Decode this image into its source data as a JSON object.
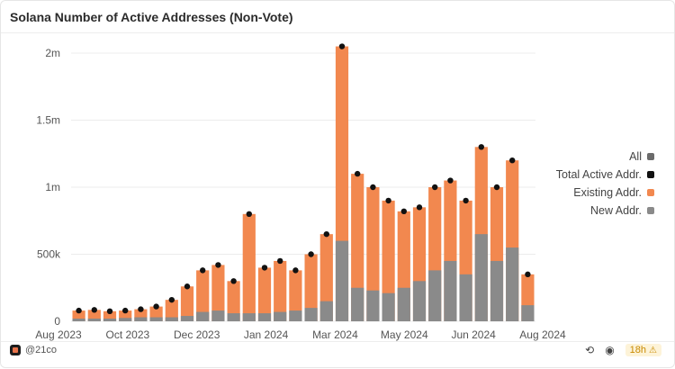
{
  "header": {
    "title": "Solana Number of Active Addresses (Non-Vote)"
  },
  "footer": {
    "author": "@21co",
    "refresh": "18h"
  },
  "chart_data": {
    "type": "bar",
    "title": "Solana Number of Active Addresses (Non-Vote)",
    "xlabel": "",
    "ylabel": "",
    "ylim": [
      0,
      2000000
    ],
    "yticks": [
      {
        "value": 0,
        "label": "0"
      },
      {
        "value": 500000,
        "label": "500k"
      },
      {
        "value": 1000000,
        "label": "1m"
      },
      {
        "value": 1500000,
        "label": "1.5m"
      },
      {
        "value": 2000000,
        "label": "2m"
      }
    ],
    "xticks": [
      "Aug 2023",
      "Oct 2023",
      "Dec 2023",
      "Jan 2024",
      "Mar 2024",
      "May 2024",
      "Jun 2024",
      "Aug 2024"
    ],
    "legend": [
      {
        "label": "All",
        "color": "#6b6b6b"
      },
      {
        "label": "Total Active Addr.",
        "color": "#111111"
      },
      {
        "label": "Existing Addr.",
        "color": "#f2884f"
      },
      {
        "label": "New Addr.",
        "color": "#8a8a8a"
      }
    ],
    "categories": [
      "2023-08-01",
      "2023-08-15",
      "2023-09-01",
      "2023-09-15",
      "2023-10-01",
      "2023-10-15",
      "2023-11-01",
      "2023-11-15",
      "2023-12-01",
      "2023-12-15",
      "2024-01-01",
      "2024-01-07",
      "2024-01-15",
      "2024-02-01",
      "2024-02-15",
      "2024-02-25",
      "2024-03-01",
      "2024-03-08",
      "2024-03-15",
      "2024-04-01",
      "2024-04-15",
      "2024-05-01",
      "2024-05-15",
      "2024-06-01",
      "2024-06-15",
      "2024-07-01",
      "2024-07-10",
      "2024-07-20",
      "2024-08-01",
      "2024-08-05"
    ],
    "series": [
      {
        "name": "Total Active Addr.",
        "values": [
          80000,
          85000,
          75000,
          80000,
          90000,
          110000,
          160000,
          260000,
          380000,
          420000,
          300000,
          800000,
          400000,
          450000,
          380000,
          500000,
          650000,
          2050000,
          1100000,
          1000000,
          900000,
          820000,
          850000,
          1000000,
          1050000,
          900000,
          1300000,
          1000000,
          1200000,
          350000
        ]
      },
      {
        "name": "New Addr.",
        "values": [
          20000,
          20000,
          20000,
          25000,
          30000,
          30000,
          30000,
          40000,
          70000,
          80000,
          60000,
          60000,
          60000,
          70000,
          80000,
          100000,
          150000,
          600000,
          250000,
          230000,
          210000,
          250000,
          300000,
          380000,
          450000,
          350000,
          650000,
          450000,
          550000,
          120000
        ]
      }
    ]
  }
}
